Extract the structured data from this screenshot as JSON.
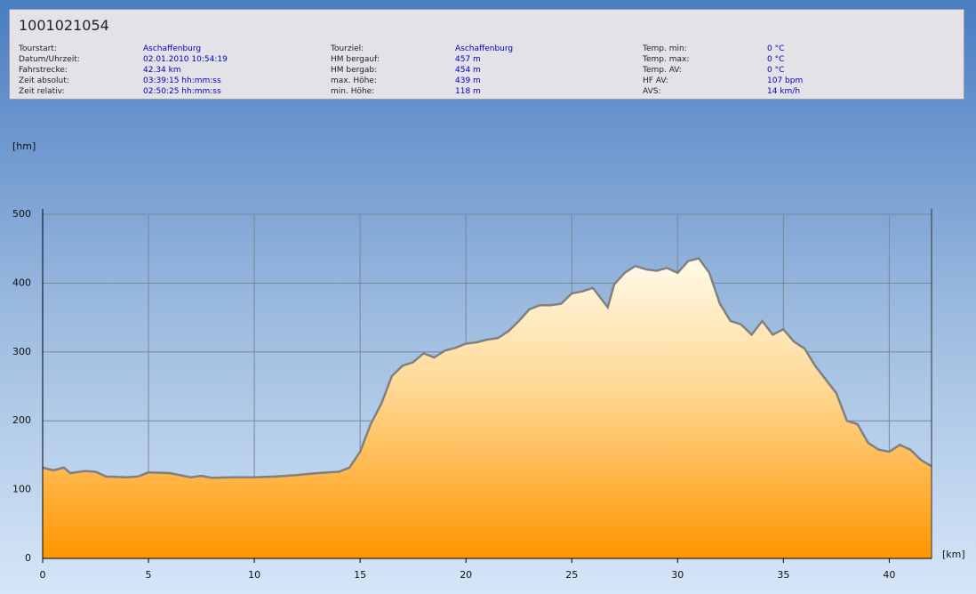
{
  "header": {
    "title": "1001021054",
    "fields": [
      [
        {
          "label": "Tourstart:",
          "value": "Aschaffenburg"
        },
        {
          "label": "Datum/Uhrzeit:",
          "value": "02.01.2010 10:54:19"
        },
        {
          "label": "Fahrstrecke:",
          "value": "42.34 km"
        },
        {
          "label": "Zeit absolut:",
          "value": "03:39:15 hh:mm:ss"
        },
        {
          "label": "Zeit relativ:",
          "value": "02:50:25 hh:mm:ss"
        }
      ],
      [
        {
          "label": "Tourziel:",
          "value": "Aschaffenburg"
        },
        {
          "label": "HM bergauf:",
          "value": "457 m"
        },
        {
          "label": "HM bergab:",
          "value": "454 m"
        },
        {
          "label": "max. Höhe:",
          "value": "439 m"
        },
        {
          "label": "min. Höhe:",
          "value": "118 m"
        }
      ],
      [
        {
          "label": "Temp. min:",
          "value": "0 °C"
        },
        {
          "label": "Temp. max:",
          "value": "0 °C"
        },
        {
          "label": "Temp. AV:",
          "value": "0 °C"
        },
        {
          "label": "HF AV:",
          "value": "107 bpm"
        },
        {
          "label": "AVS:",
          "value": "14 km/h"
        }
      ]
    ]
  },
  "chart_data": {
    "type": "area",
    "y_label": "[hm]",
    "x_label": "[km]",
    "color": "#808080",
    "x": [
      0,
      0.5,
      1,
      1.3,
      2,
      2.5,
      3,
      4,
      4.5,
      5,
      6,
      7,
      7.5,
      8,
      9,
      10,
      11,
      12,
      13,
      14,
      14.5,
      15,
      15.5,
      16,
      16.5,
      17,
      17.5,
      18,
      18.5,
      19,
      19.5,
      20,
      20.5,
      21,
      21.5,
      22,
      22.5,
      23,
      23.5,
      24,
      24.5,
      25,
      25.5,
      26,
      26.7,
      27,
      27.5,
      28,
      28.5,
      29,
      29.5,
      30,
      30.5,
      31,
      31.5,
      32,
      32.5,
      33,
      33.5,
      34,
      34.5,
      35,
      35.5,
      36,
      36.5,
      37,
      37.5,
      38,
      38.5,
      39,
      39.5,
      40,
      40.5,
      41,
      41.5,
      42
    ],
    "values": [
      132,
      128,
      132,
      124,
      127,
      126,
      119,
      118,
      119,
      125,
      124,
      118,
      120,
      117,
      118,
      118,
      119,
      121,
      124,
      126,
      132,
      155,
      195,
      225,
      265,
      280,
      285,
      298,
      292,
      302,
      306,
      312,
      314,
      318,
      320,
      330,
      345,
      362,
      368,
      368,
      370,
      385,
      388,
      393,
      365,
      398,
      415,
      425,
      420,
      418,
      422,
      415,
      432,
      436,
      415,
      370,
      345,
      340,
      325,
      345,
      325,
      333,
      315,
      305,
      280,
      260,
      240,
      200,
      195,
      168,
      158,
      155,
      165,
      158,
      143,
      134
    ],
    "xlim": [
      0,
      42
    ],
    "ylim": [
      0,
      500
    ],
    "xticks": [
      0,
      5,
      10,
      15,
      20,
      25,
      30,
      35,
      40
    ],
    "yticks": [
      0,
      100,
      200,
      300,
      400,
      500
    ],
    "grid": true
  }
}
